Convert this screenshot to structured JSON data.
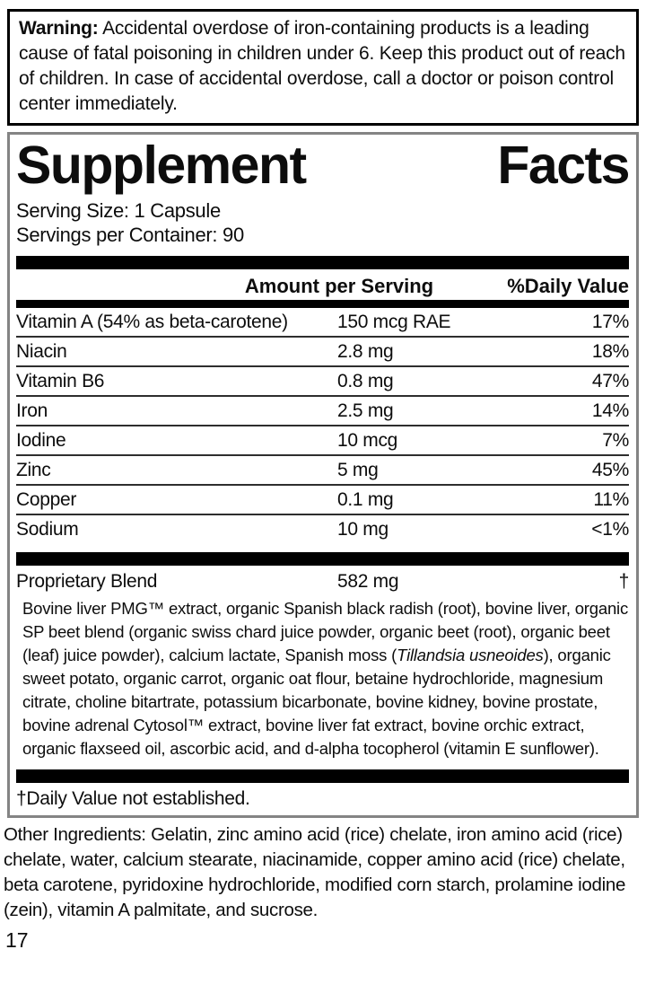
{
  "warning": {
    "label": "Warning:",
    "text": "Accidental overdose of iron-containing products is a leading cause of fatal poisoning in children under 6. Keep this product out of reach of children. In case of accidental overdose, call a doctor or poison control center immediately."
  },
  "panel": {
    "title": "Supplement Facts",
    "title_words": [
      "Supplement",
      "Facts"
    ],
    "serving_size": "Serving Size: 1 Capsule",
    "servings_per_container": "Servings per Container: 90"
  },
  "table": {
    "header_amount": "Amount per Serving",
    "header_dv": "%Daily Value",
    "rows": [
      {
        "name": "Vitamin A (54% as beta-carotene)",
        "amount": "150 mcg RAE",
        "dv": "17%"
      },
      {
        "name": "Niacin",
        "amount": "2.8 mg",
        "dv": "18%"
      },
      {
        "name": "Vitamin B6",
        "amount": "0.8 mg",
        "dv": "47%"
      },
      {
        "name": "Iron",
        "amount": "2.5 mg",
        "dv": "14%"
      },
      {
        "name": "Iodine",
        "amount": "10 mcg",
        "dv": "7%"
      },
      {
        "name": "Zinc",
        "amount": "5 mg",
        "dv": "45%"
      },
      {
        "name": "Copper",
        "amount": "0.1 mg",
        "dv": "11%"
      },
      {
        "name": "Sodium",
        "amount": "10 mg",
        "dv": "<1%"
      }
    ]
  },
  "blend": {
    "name": "Proprietary Blend",
    "amount": "582 mg",
    "dv": "†",
    "desc_before": "Bovine liver PMG™ extract, organic Spanish black radish (root), bovine liver, organic SP beet blend (organic swiss chard juice powder, organic beet (root), organic beet (leaf) juice powder), calcium lactate, Spanish moss (",
    "desc_italic": "Tillandsia usneoides",
    "desc_after": "), organic sweet potato, organic carrot, organic oat flour, betaine hydrochloride, magnesium citrate, choline bitartrate, potassium bicarbonate, bovine kidney, bovine prostate, bovine adrenal Cytosol™ extract, bovine liver fat extract, bovine orchic extract, organic flaxseed oil, ascorbic acid, and d-alpha tocopherol (vitamin E sunflower)."
  },
  "footnote": "†Daily Value not established.",
  "other_ingredients": "Other Ingredients: Gelatin, zinc amino acid (rice) chelate, iron amino acid (rice) chelate, water, calcium stearate, niacinamide, copper amino acid (rice) chelate, beta carotene, pyridoxine hydrochloride, modified corn starch, prolamine iodine (zein), vitamin A palmitate, and sucrose.",
  "page_number": "17",
  "colors": {
    "ink": "#0d0d0d",
    "warning_border": "#000000",
    "panel_border": "#848484",
    "bar": "#000000",
    "row_line": "#2e2e2e",
    "background": "#ffffff"
  }
}
